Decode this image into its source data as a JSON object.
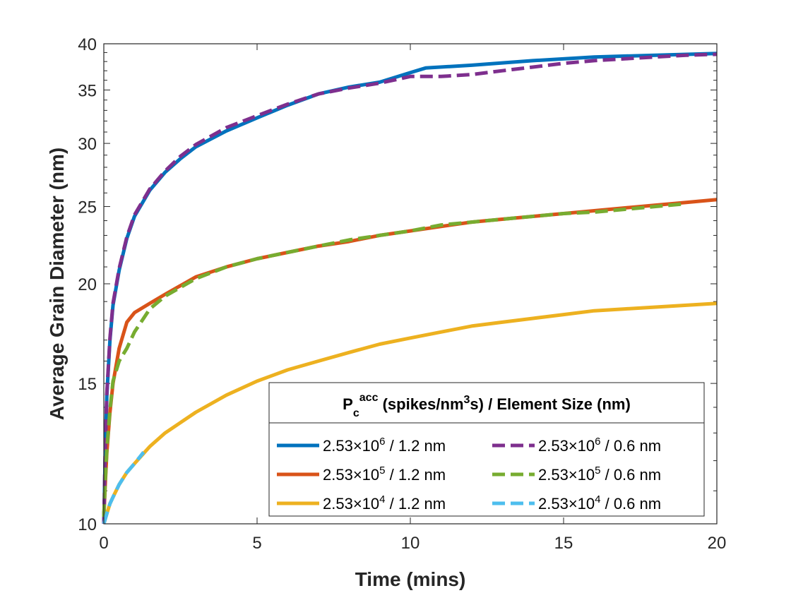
{
  "chart_data": {
    "type": "line",
    "title": "",
    "xlabel": "Time (mins)",
    "ylabel": "Average Grain Diameter (nm)",
    "xlim": [
      0,
      20
    ],
    "ylim": [
      10,
      40
    ],
    "yscale": "log",
    "xticks": [
      "0",
      "5",
      "10",
      "15",
      "20"
    ],
    "yticks": [
      "10",
      "15",
      "20",
      "25",
      "30",
      "35",
      "40"
    ],
    "grid": false,
    "legend": {
      "placement": "bottom-right",
      "columns": 2,
      "title_main": "P",
      "title_sub": "c",
      "title_sup": "acc",
      "title_rest1": " (spikes/nm",
      "title_sup2": "3",
      "title_rest2": "s) / Element Size (nm)"
    },
    "series": [
      {
        "name": "2.53×10^6 / 1.2 nm",
        "label_base": "2.53×10",
        "label_exp": "6",
        "label_suffix": " / 1.2 nm",
        "color": "#0072BD",
        "style": "solid",
        "x": [
          0,
          0.05,
          0.1,
          0.2,
          0.3,
          0.5,
          0.75,
          1,
          1.5,
          2,
          2.5,
          3,
          4,
          5,
          6,
          7,
          8,
          9,
          10,
          10.5,
          12,
          14,
          16,
          18,
          20
        ],
        "y": [
          10,
          12.5,
          14.5,
          17,
          18.8,
          20.8,
          22.8,
          24.3,
          26.2,
          27.6,
          28.7,
          29.7,
          31.1,
          32.3,
          33.5,
          34.6,
          35.3,
          35.8,
          36.8,
          37.3,
          37.6,
          38.1,
          38.5,
          38.7,
          38.9
        ]
      },
      {
        "name": "2.53×10^6 / 0.6 nm",
        "label_base": "2.53×10",
        "label_exp": "6",
        "label_suffix": " / 0.6 nm",
        "color": "#7E2F8E",
        "style": "dashed",
        "x": [
          0,
          0.05,
          0.1,
          0.2,
          0.3,
          0.5,
          0.75,
          1,
          1.5,
          2,
          2.5,
          3,
          4,
          5,
          6,
          7,
          8,
          9,
          10,
          11,
          12,
          13,
          14,
          15,
          16,
          17,
          18,
          19,
          20
        ],
        "y": [
          10,
          12.6,
          14.6,
          17.1,
          18.9,
          20.9,
          22.9,
          24.4,
          26.3,
          27.7,
          28.9,
          29.9,
          31.4,
          32.5,
          33.6,
          34.6,
          35.2,
          35.7,
          36.4,
          36.4,
          36.6,
          37.0,
          37.4,
          37.8,
          38.1,
          38.3,
          38.5,
          38.7,
          38.8
        ]
      },
      {
        "name": "2.53×10^5 / 1.2 nm",
        "label_base": "2.53×10",
        "label_exp": "5",
        "label_suffix": " / 1.2 nm",
        "color": "#D95319",
        "style": "solid",
        "x": [
          0,
          0.05,
          0.1,
          0.2,
          0.3,
          0.5,
          0.75,
          1,
          1.5,
          2,
          3,
          4,
          5,
          6,
          7,
          8,
          9,
          10,
          11,
          12,
          13,
          14,
          15,
          16,
          17,
          18,
          19,
          20
        ],
        "y": [
          10.2,
          11.3,
          12.3,
          13.8,
          15.0,
          16.6,
          17.9,
          18.4,
          18.9,
          19.4,
          20.4,
          21.0,
          21.5,
          21.9,
          22.3,
          22.6,
          23.0,
          23.3,
          23.6,
          23.9,
          24.1,
          24.3,
          24.5,
          24.7,
          24.9,
          25.1,
          25.3,
          25.5
        ]
      },
      {
        "name": "2.53×10^5 / 0.6 nm",
        "label_base": "2.53×10",
        "label_exp": "5",
        "label_suffix": " / 0.6 nm",
        "color": "#77AC30",
        "style": "dashed",
        "x": [
          0,
          0.05,
          0.1,
          0.2,
          0.3,
          0.5,
          0.75,
          1,
          1.5,
          2,
          3,
          4,
          5,
          6,
          7,
          8,
          9,
          10,
          11,
          12,
          13,
          14,
          15,
          16,
          17,
          18,
          19
        ],
        "y": [
          10.2,
          11.4,
          12.4,
          13.9,
          15.1,
          16.0,
          16.6,
          17.4,
          18.6,
          19.3,
          20.3,
          21.0,
          21.5,
          21.9,
          22.3,
          22.7,
          23.0,
          23.3,
          23.7,
          23.9,
          24.1,
          24.3,
          24.5,
          24.6,
          24.8,
          25.0,
          25.2
        ]
      },
      {
        "name": "2.53×10^4 / 1.2 nm",
        "label_base": "2.53×10",
        "label_exp": "4",
        "label_suffix": " / 1.2 nm",
        "color": "#EDB120",
        "style": "solid",
        "x": [
          0,
          0.1,
          0.2,
          0.3,
          0.5,
          0.75,
          1,
          1.5,
          2,
          3,
          4,
          5,
          6,
          7,
          8,
          9,
          10,
          11,
          12,
          13,
          14,
          15,
          16,
          17,
          18,
          19,
          20
        ],
        "y": [
          10,
          10.3,
          10.6,
          10.8,
          11.2,
          11.6,
          11.9,
          12.5,
          13.0,
          13.8,
          14.5,
          15.1,
          15.6,
          16.0,
          16.4,
          16.8,
          17.1,
          17.4,
          17.7,
          17.9,
          18.1,
          18.3,
          18.5,
          18.6,
          18.7,
          18.8,
          18.9
        ]
      },
      {
        "name": "2.53×10^4 / 0.6 nm",
        "label_base": "2.53×10",
        "label_exp": "4",
        "label_suffix": " / 0.6 nm",
        "color": "#4DBEEE",
        "style": "dashed",
        "x": [
          0,
          0.1,
          0.2,
          0.3,
          0.5,
          0.75,
          1,
          1.3
        ],
        "y": [
          10,
          10.3,
          10.6,
          10.8,
          11.2,
          11.6,
          11.9,
          12.3
        ]
      }
    ]
  }
}
